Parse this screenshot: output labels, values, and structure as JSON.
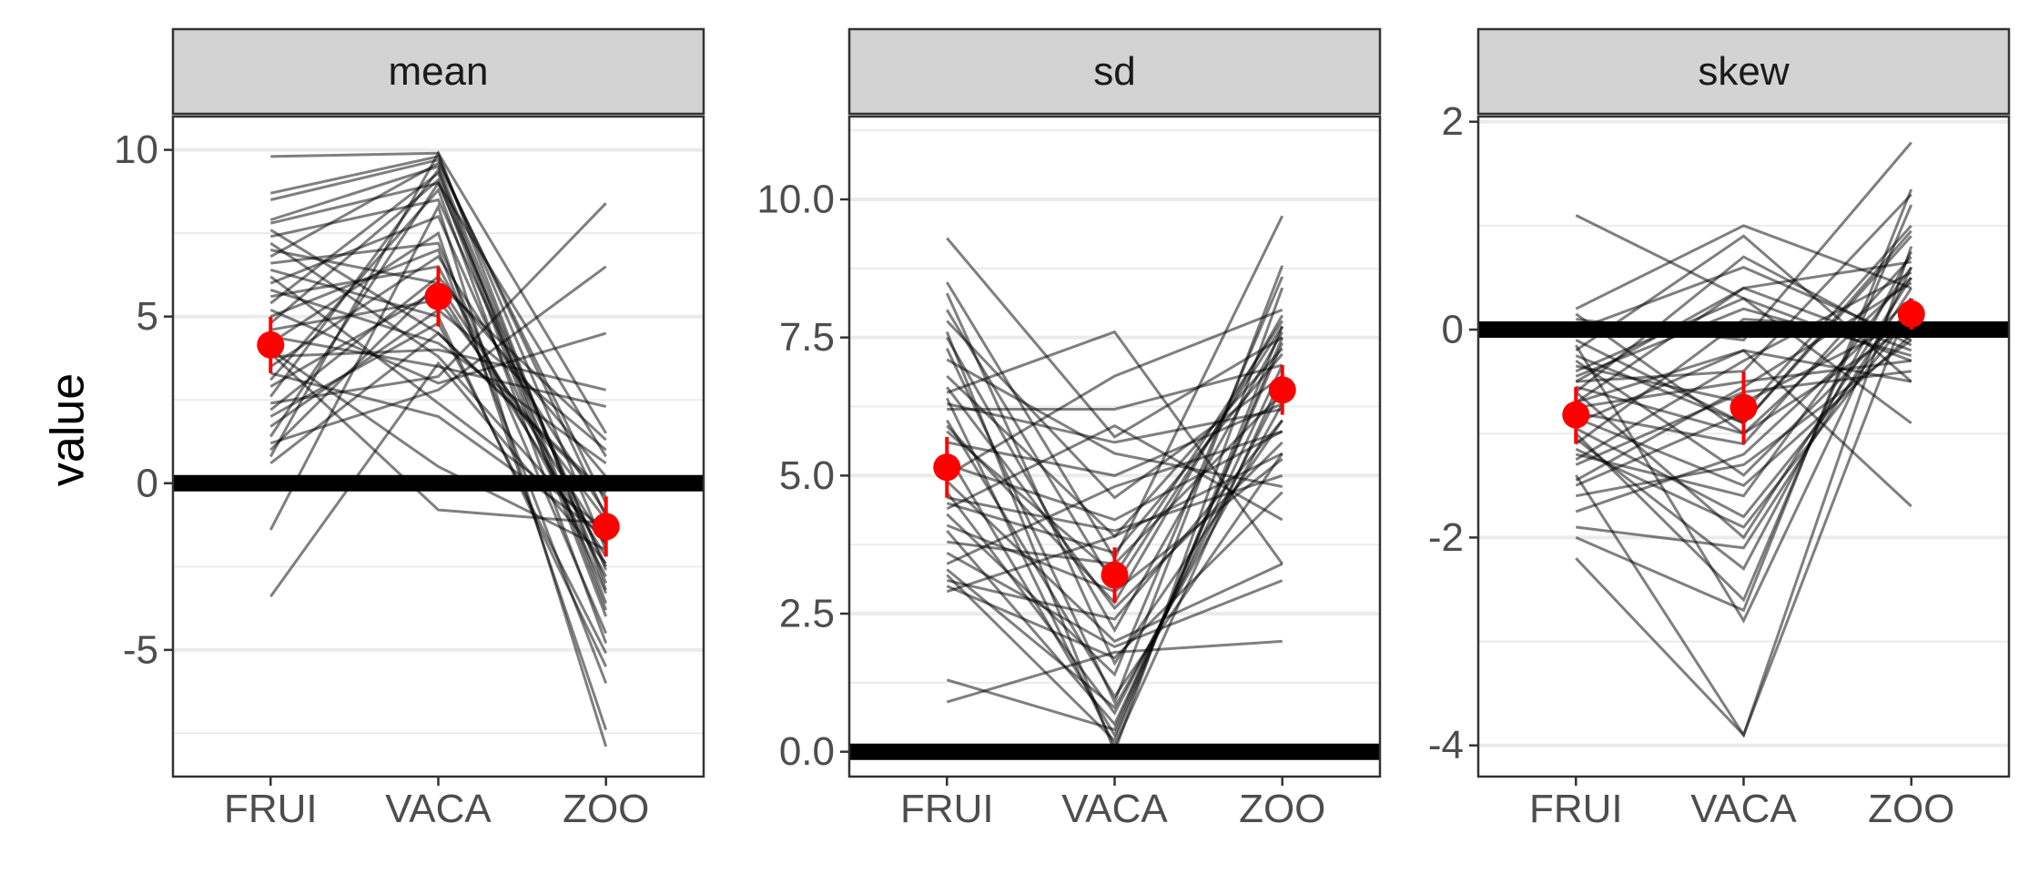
{
  "chart_data": {
    "type": "line",
    "ylabel": "value",
    "x_categories": [
      "FRUI",
      "VACA",
      "ZOO"
    ],
    "grid": true,
    "colors": {
      "lines": "#000000",
      "mean_point": "#ff0000",
      "zero_line": "#000000",
      "strip_fill": "#d3d3d3",
      "grid_major": "#ebebeb"
    },
    "panels": [
      {
        "title": "mean",
        "ylim": [
          -8.8,
          11.0
        ],
        "yticks": [
          -5,
          0,
          5,
          10
        ],
        "ytick_labels": [
          "-5",
          "0",
          "5",
          "10"
        ],
        "reference_line": 0,
        "summary": {
          "values": [
            4.15,
            5.6,
            -1.3
          ],
          "ci_low": [
            3.3,
            4.7,
            -2.2
          ],
          "ci_high": [
            5.0,
            6.5,
            -0.4
          ]
        },
        "lines": [
          [
            9.8,
            9.9,
            1.5
          ],
          [
            8.7,
            9.8,
            -2.0
          ],
          [
            8.5,
            9.7,
            -1.0
          ],
          [
            7.9,
            9.5,
            -3.0
          ],
          [
            7.8,
            9.0,
            0.8
          ],
          [
            7.6,
            4.5,
            -0.3
          ],
          [
            7.4,
            8.5,
            -2.5
          ],
          [
            7.2,
            3.8,
            -1.8
          ],
          [
            7.0,
            6.0,
            1.3
          ],
          [
            6.8,
            9.6,
            -0.6
          ],
          [
            6.6,
            7.2,
            -4.5
          ],
          [
            6.4,
            5.0,
            -5.5
          ],
          [
            6.2,
            2.4,
            -1.4
          ],
          [
            6.0,
            8.0,
            -3.3
          ],
          [
            5.8,
            4.2,
            0.6
          ],
          [
            5.6,
            6.5,
            -2.8
          ],
          [
            5.4,
            9.3,
            -3.8
          ],
          [
            5.2,
            3.0,
            4.5
          ],
          [
            5.0,
            7.0,
            -6.0
          ],
          [
            4.8,
            9.1,
            -4.0
          ],
          [
            4.6,
            5.5,
            -1.1
          ],
          [
            4.4,
            3.5,
            2.3
          ],
          [
            4.2,
            7.5,
            -7.4
          ],
          [
            4.0,
            0.5,
            -2.0
          ],
          [
            3.8,
            4.0,
            2.8
          ],
          [
            3.5,
            6.8,
            -0.9
          ],
          [
            3.3,
            2.0,
            -1.6
          ],
          [
            3.1,
            8.8,
            -4.8
          ],
          [
            2.9,
            5.8,
            -2.2
          ],
          [
            2.6,
            9.4,
            -3.6
          ],
          [
            2.4,
            3.2,
            8.4
          ],
          [
            2.2,
            6.2,
            0.2
          ],
          [
            2.0,
            4.8,
            -5.1
          ],
          [
            1.7,
            5.2,
            1.0
          ],
          [
            1.4,
            9.0,
            -2.6
          ],
          [
            1.2,
            2.8,
            6.5
          ],
          [
            1.0,
            6.0,
            -1.8
          ],
          [
            0.8,
            9.9,
            -3.2
          ],
          [
            0.6,
            4.5,
            -0.4
          ],
          [
            -1.4,
            8.3,
            -7.9
          ],
          [
            -3.4,
            3.6,
            -2.4
          ],
          [
            3.9,
            -0.8,
            -1.2
          ]
        ]
      },
      {
        "title": "sd",
        "ylim": [
          -0.45,
          11.5
        ],
        "yticks": [
          0.0,
          2.5,
          5.0,
          7.5,
          10.0
        ],
        "ytick_labels": [
          "0.0",
          "2.5",
          "5.0",
          "7.5",
          "10.0"
        ],
        "reference_line": 0,
        "summary": {
          "values": [
            5.15,
            3.2,
            6.55
          ],
          "ci_low": [
            4.6,
            2.7,
            6.1
          ],
          "ci_high": [
            5.7,
            3.7,
            7.0
          ]
        },
        "lines": [
          [
            9.3,
            5.7,
            7.5
          ],
          [
            8.5,
            3.5,
            9.7
          ],
          [
            8.3,
            1.6,
            6.0
          ],
          [
            8.0,
            3.0,
            7.7
          ],
          [
            7.8,
            4.6,
            6.8
          ],
          [
            7.5,
            2.2,
            7.6
          ],
          [
            7.3,
            0.9,
            8.8
          ],
          [
            7.1,
            5.4,
            4.8
          ],
          [
            6.8,
            3.9,
            7.3
          ],
          [
            6.6,
            2.6,
            5.6
          ],
          [
            6.5,
            7.6,
            3.4
          ],
          [
            6.4,
            0.1,
            6.8
          ],
          [
            6.2,
            6.2,
            7.0
          ],
          [
            6.0,
            1.0,
            5.4
          ],
          [
            5.8,
            3.2,
            7.8
          ],
          [
            5.6,
            5.0,
            6.3
          ],
          [
            5.4,
            0.3,
            7.5
          ],
          [
            5.2,
            4.2,
            5.8
          ],
          [
            5.0,
            6.8,
            8.0
          ],
          [
            4.9,
            2.0,
            3.4
          ],
          [
            4.7,
            0.7,
            6.6
          ],
          [
            4.5,
            3.6,
            7.2
          ],
          [
            4.4,
            5.9,
            4.2
          ],
          [
            4.3,
            1.4,
            8.6
          ],
          [
            4.1,
            2.9,
            5.3
          ],
          [
            4.0,
            0.5,
            7.0
          ],
          [
            3.8,
            3.4,
            6.5
          ],
          [
            3.6,
            1.9,
            3.1
          ],
          [
            3.4,
            4.8,
            5.8
          ],
          [
            3.2,
            0.2,
            7.7
          ],
          [
            3.1,
            2.4,
            6.0
          ],
          [
            3.0,
            1.7,
            4.7
          ],
          [
            2.9,
            3.9,
            5.4
          ],
          [
            1.3,
            0.4,
            7.4
          ],
          [
            0.9,
            1.8,
            2.0
          ],
          [
            7.6,
            0.0,
            8.4
          ],
          [
            6.3,
            5.6,
            6.2
          ],
          [
            4.6,
            4.0,
            5.0
          ],
          [
            5.9,
            2.7,
            7.9
          ],
          [
            3.3,
            0.8,
            6.3
          ]
        ]
      },
      {
        "title": "skew",
        "ylim": [
          -4.3,
          2.05
        ],
        "yticks": [
          -4,
          -2,
          0,
          2
        ],
        "ytick_labels": [
          "-4",
          "-2",
          "0",
          "2"
        ],
        "reference_line": 0,
        "summary": {
          "values": [
            -0.82,
            -0.75,
            0.15
          ],
          "ci_low": [
            -1.1,
            -1.1,
            0.0
          ],
          "ci_high": [
            -0.55,
            -0.4,
            0.3
          ]
        },
        "lines": [
          [
            1.1,
            0.3,
            -0.3
          ],
          [
            0.2,
            1.0,
            0.4
          ],
          [
            0.1,
            -0.1,
            1.8
          ],
          [
            0.0,
            0.6,
            -0.1
          ],
          [
            -0.1,
            -0.9,
            0.9
          ],
          [
            -0.2,
            0.9,
            -0.5
          ],
          [
            -0.3,
            -1.4,
            0.2
          ],
          [
            -0.4,
            0.3,
            -0.9
          ],
          [
            -0.5,
            -0.4,
            1.3
          ],
          [
            -0.6,
            -2.0,
            0.5
          ],
          [
            -0.7,
            0.4,
            -0.2
          ],
          [
            -0.8,
            -1.1,
            0.7
          ],
          [
            -0.9,
            -0.2,
            -1.7
          ],
          [
            -1.0,
            -2.6,
            1.2
          ],
          [
            -1.1,
            0.1,
            0.0
          ],
          [
            -1.2,
            -1.6,
            0.6
          ],
          [
            -1.3,
            -0.6,
            -0.4
          ],
          [
            -1.4,
            -3.9,
            0.3
          ],
          [
            -1.5,
            -0.8,
            1.0
          ],
          [
            -1.6,
            -1.3,
            -0.1
          ],
          [
            -1.9,
            -2.1,
            0.4
          ],
          [
            -2.2,
            -3.9,
            0.8
          ],
          [
            -0.35,
            -0.7,
            0.1
          ],
          [
            -0.55,
            -1.0,
            0.5
          ],
          [
            -0.75,
            -0.5,
            -0.3
          ],
          [
            -0.95,
            -1.8,
            0.2
          ],
          [
            -0.15,
            -2.8,
            0.6
          ],
          [
            -1.75,
            -1.2,
            0.3
          ],
          [
            -2.0,
            -2.7,
            1.35
          ],
          [
            -0.45,
            0.2,
            -0.25
          ],
          [
            -0.85,
            -1.5,
            -0.05
          ],
          [
            -1.25,
            -0.3,
            0.55
          ],
          [
            0.15,
            -1.0,
            0.05
          ],
          [
            -0.6,
            0.7,
            -0.15
          ],
          [
            -1.05,
            -2.3,
            0.75
          ],
          [
            -1.45,
            -0.55,
            0.45
          ],
          [
            -0.25,
            -0.9,
            0.95
          ],
          [
            -0.7,
            -0.2,
            -0.5
          ],
          [
            -1.15,
            -1.9,
            0.15
          ],
          [
            -0.5,
            0.4,
            0.65
          ]
        ]
      }
    ]
  }
}
